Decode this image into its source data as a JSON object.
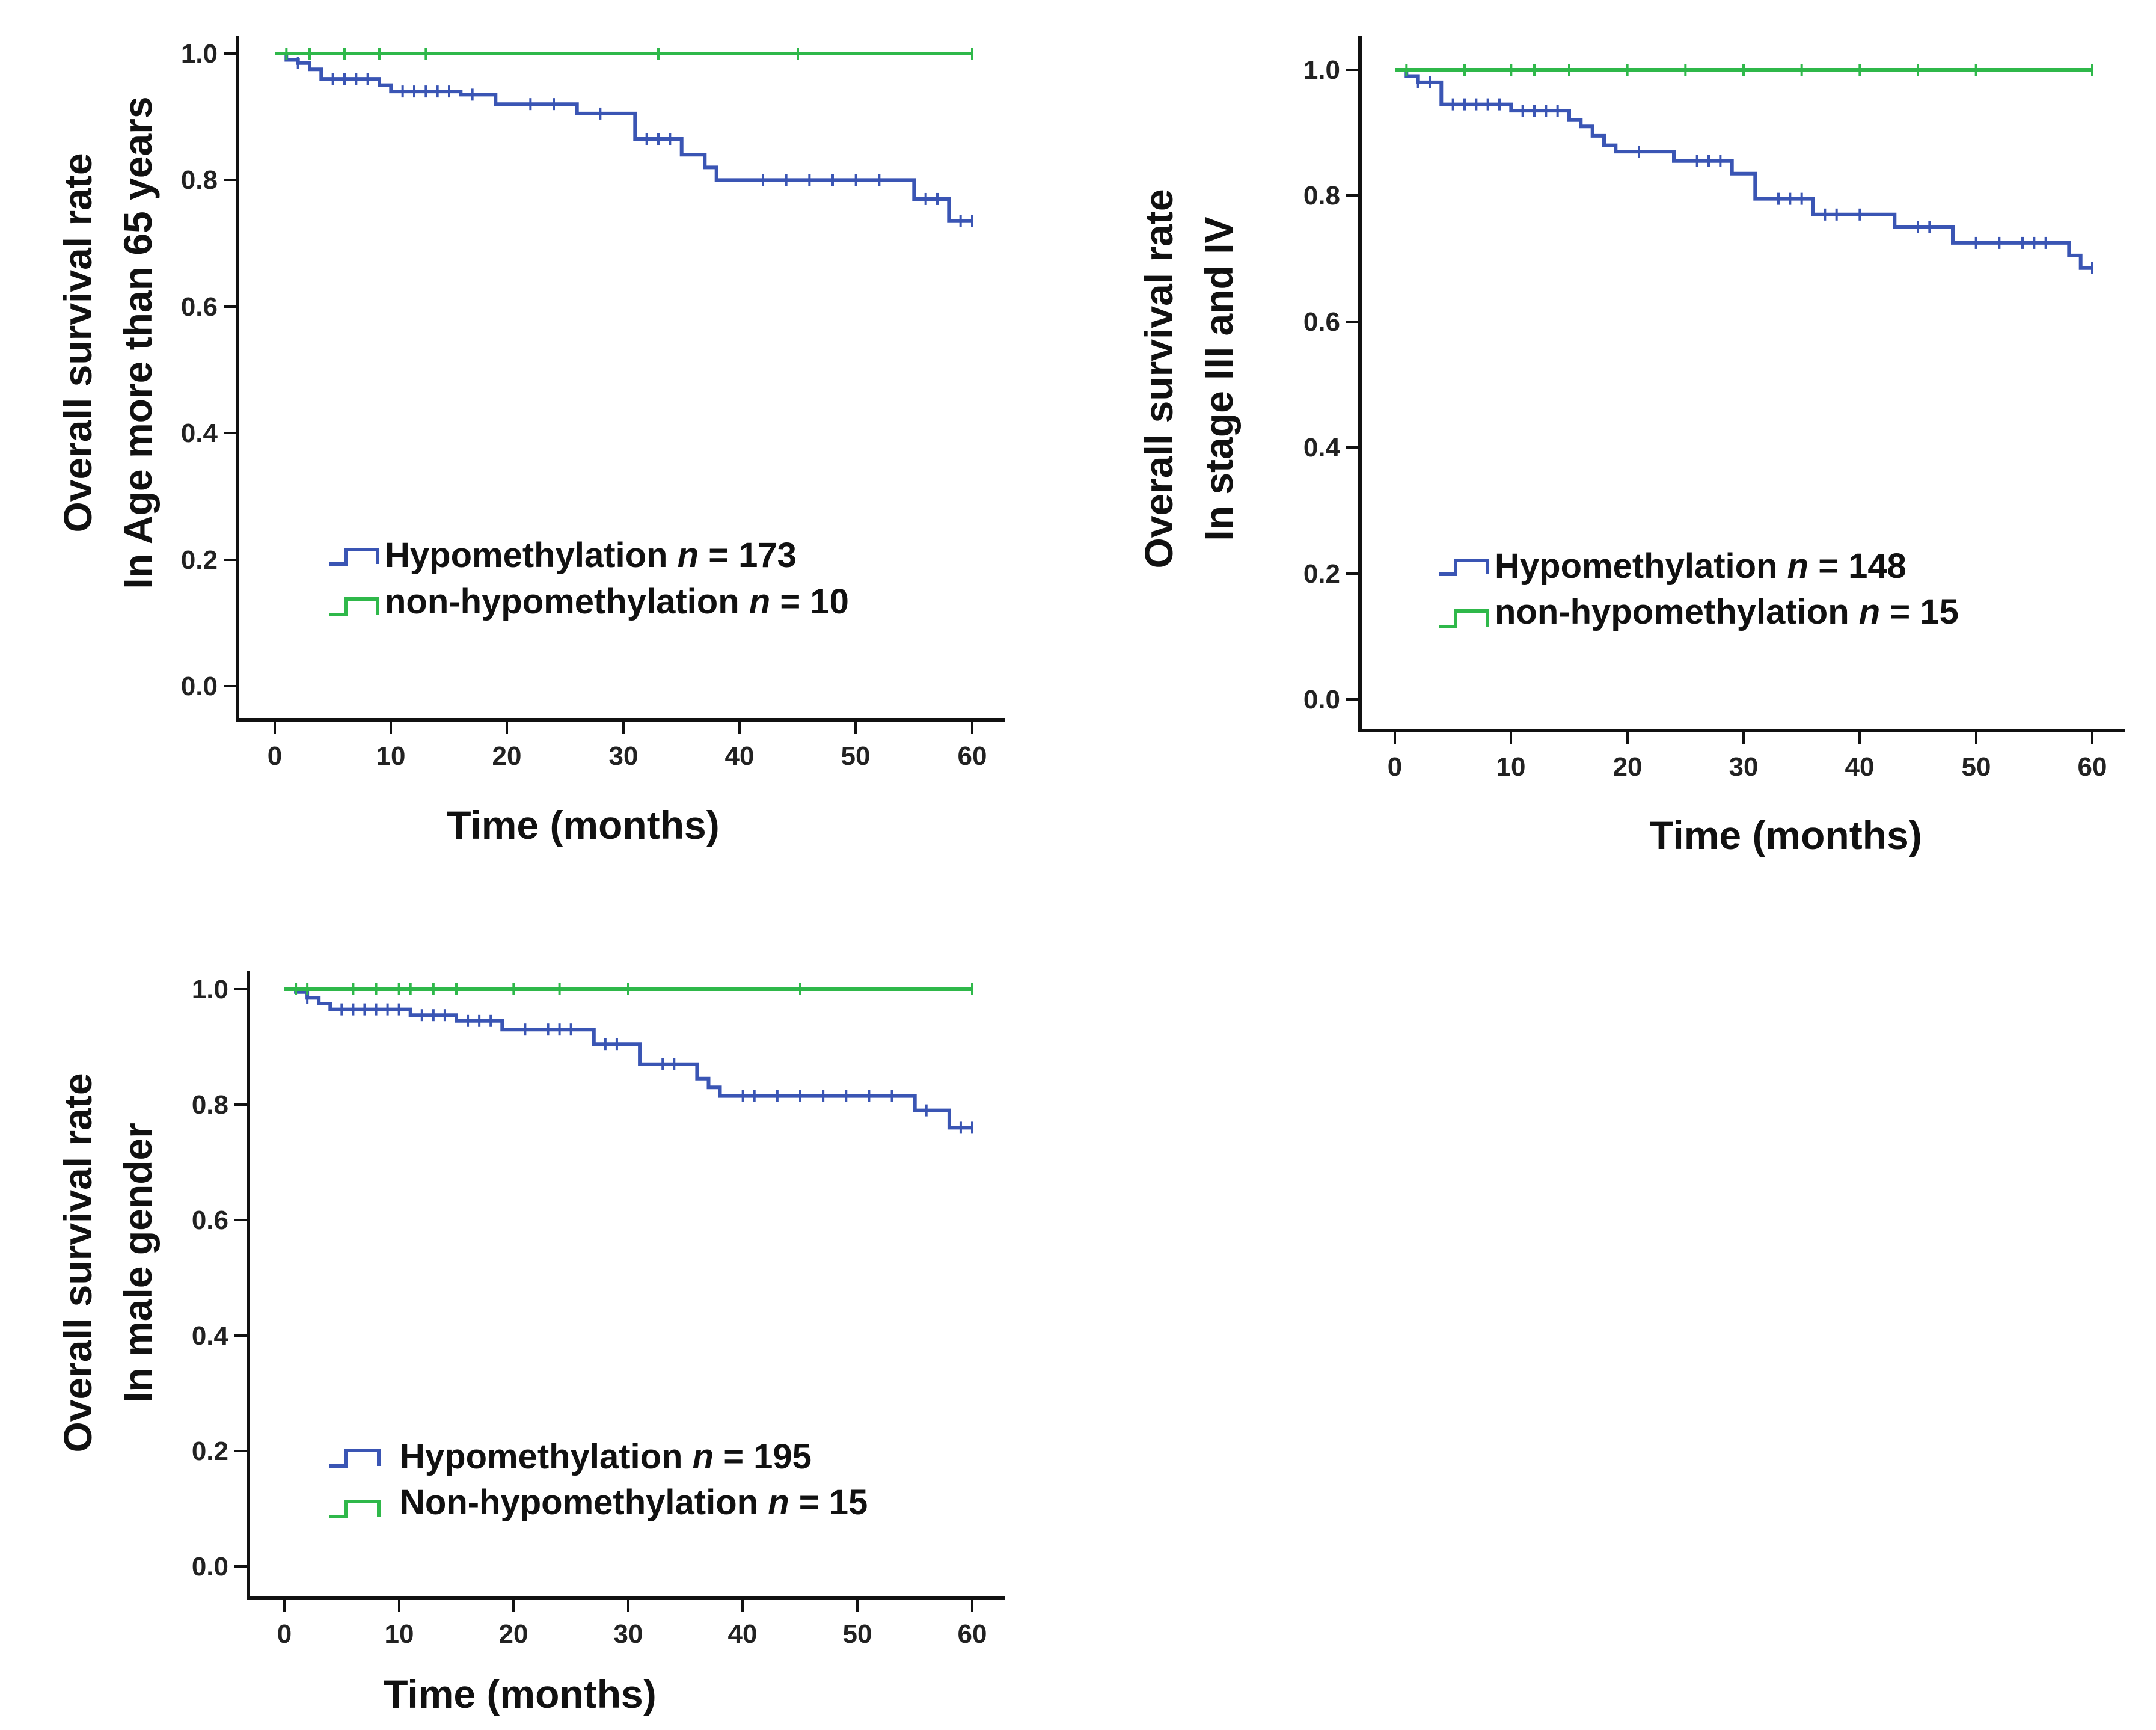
{
  "colors": {
    "hypo": "#3a55b4",
    "non": "#2fb84a",
    "axis": "#111111"
  },
  "chart_data": [
    {
      "id": "age",
      "type": "line",
      "subtype": "kaplan-meier",
      "xlabel": "Time (months)",
      "ylabel_line1": "Overall survival rate",
      "ylabel_line2": "In Age more than 65 years",
      "xlim": [
        0,
        60
      ],
      "ylim": [
        0,
        1
      ],
      "xticks": [
        "0",
        "10",
        "20",
        "30",
        "40",
        "50",
        "60"
      ],
      "yticks": [
        "0.0",
        "0.2",
        "0.4",
        "0.6",
        "0.8",
        "1.0"
      ],
      "legend": [
        {
          "name": "Hypomethylation",
          "n_label": "n",
          "n_value": "= 173",
          "color_key": "hypo"
        },
        {
          "name": "non-hypomethylation",
          "n_label": "n",
          "n_value": "= 10",
          "color_key": "non"
        }
      ],
      "series": [
        {
          "name": "Hypomethylation",
          "color_key": "hypo",
          "steps": [
            [
              0,
              1.0
            ],
            [
              1,
              0.99
            ],
            [
              2,
              0.985
            ],
            [
              3,
              0.975
            ],
            [
              4,
              0.96
            ],
            [
              9,
              0.95
            ],
            [
              10,
              0.94
            ],
            [
              16,
              0.935
            ],
            [
              19,
              0.92
            ],
            [
              26,
              0.905
            ],
            [
              31,
              0.865
            ],
            [
              35,
              0.84
            ],
            [
              37,
              0.82
            ],
            [
              38,
              0.8
            ],
            [
              55,
              0.77
            ],
            [
              58,
              0.735
            ],
            [
              60,
              0.735
            ]
          ],
          "censored": [
            2,
            5,
            6,
            7,
            8,
            11,
            12,
            13,
            14,
            15,
            17,
            22,
            24,
            28,
            32,
            33,
            34,
            42,
            44,
            46,
            48,
            50,
            52,
            56,
            57,
            59,
            60
          ]
        },
        {
          "name": "non-hypomethylation",
          "color_key": "non",
          "steps": [
            [
              0,
              1.0
            ],
            [
              60,
              1.0
            ]
          ],
          "censored": [
            1,
            3,
            6,
            9,
            13,
            33,
            45,
            60
          ]
        }
      ]
    },
    {
      "id": "stage",
      "type": "line",
      "subtype": "kaplan-meier",
      "xlabel": "Time (months)",
      "ylabel_line1": "Overall survival rate",
      "ylabel_line2": "In stage III and IV",
      "xlim": [
        0,
        60
      ],
      "ylim": [
        0,
        1
      ],
      "xticks": [
        "0",
        "10",
        "20",
        "30",
        "40",
        "50",
        "60"
      ],
      "yticks": [
        "0.0",
        "0.2",
        "0.4",
        "0.6",
        "0.8",
        "1.0"
      ],
      "legend": [
        {
          "name": "Hypomethylation",
          "n_label": "n",
          "n_value": "= 148",
          "color_key": "hypo"
        },
        {
          "name": "non-hypomethylation",
          "n_label": "n",
          "n_value": "= 15",
          "color_key": "non"
        }
      ],
      "series": [
        {
          "name": "Hypomethylation",
          "color_key": "hypo",
          "steps": [
            [
              0,
              1.0
            ],
            [
              1,
              0.99
            ],
            [
              2,
              0.98
            ],
            [
              4,
              0.945
            ],
            [
              10,
              0.935
            ],
            [
              15,
              0.92
            ],
            [
              16,
              0.91
            ],
            [
              17,
              0.895
            ],
            [
              18,
              0.88
            ],
            [
              19,
              0.87
            ],
            [
              24,
              0.855
            ],
            [
              29,
              0.835
            ],
            [
              31,
              0.795
            ],
            [
              36,
              0.77
            ],
            [
              43,
              0.75
            ],
            [
              48,
              0.725
            ],
            [
              58,
              0.705
            ],
            [
              59,
              0.685
            ],
            [
              60,
              0.685
            ]
          ],
          "censored": [
            2,
            3,
            5,
            6,
            7,
            8,
            9,
            11,
            12,
            13,
            14,
            21,
            26,
            27,
            28,
            33,
            34,
            35,
            37,
            38,
            40,
            45,
            46,
            50,
            52,
            54,
            55,
            56,
            60
          ]
        },
        {
          "name": "non-hypomethylation",
          "color_key": "non",
          "steps": [
            [
              0,
              1.0
            ],
            [
              60,
              1.0
            ]
          ],
          "censored": [
            1,
            6,
            10,
            12,
            15,
            20,
            25,
            30,
            35,
            40,
            45,
            50,
            60
          ]
        }
      ]
    },
    {
      "id": "male",
      "type": "line",
      "subtype": "kaplan-meier",
      "xlabel": "Time (months)",
      "ylabel_line1": "Overall survival rate",
      "ylabel_line2": "In male gender",
      "xlim": [
        0,
        60
      ],
      "ylim": [
        0,
        1
      ],
      "xticks": [
        "0",
        "10",
        "20",
        "30",
        "40",
        "50",
        "60"
      ],
      "yticks": [
        "0.0",
        "0.2",
        "0.4",
        "0.6",
        "0.8",
        "1.0"
      ],
      "legend": [
        {
          "name": "Hypomethylation",
          "n_label": "n",
          "n_value": "= 195",
          "color_key": "hypo"
        },
        {
          "name": "Non-hypomethylation",
          "n_label": "n",
          "n_value": "= 15",
          "color_key": "non"
        }
      ],
      "series": [
        {
          "name": "Hypomethylation",
          "color_key": "hypo",
          "steps": [
            [
              0,
              1.0
            ],
            [
              1,
              0.995
            ],
            [
              2,
              0.985
            ],
            [
              3,
              0.975
            ],
            [
              4,
              0.965
            ],
            [
              11,
              0.955
            ],
            [
              15,
              0.945
            ],
            [
              19,
              0.93
            ],
            [
              27,
              0.905
            ],
            [
              31,
              0.87
            ],
            [
              36,
              0.845
            ],
            [
              37,
              0.83
            ],
            [
              38,
              0.815
            ],
            [
              55,
              0.79
            ],
            [
              58,
              0.76
            ],
            [
              60,
              0.76
            ]
          ],
          "censored": [
            2,
            5,
            6,
            7,
            8,
            9,
            10,
            12,
            13,
            14,
            16,
            17,
            18,
            21,
            23,
            24,
            25,
            28,
            29,
            33,
            34,
            40,
            41,
            43,
            45,
            47,
            49,
            51,
            53,
            56,
            59,
            60
          ]
        },
        {
          "name": "Non-hypomethylation",
          "color_key": "non",
          "steps": [
            [
              0,
              1.0
            ],
            [
              60,
              1.0
            ]
          ],
          "censored": [
            1,
            2,
            6,
            8,
            10,
            11,
            13,
            15,
            20,
            24,
            30,
            45,
            60
          ]
        }
      ]
    }
  ]
}
